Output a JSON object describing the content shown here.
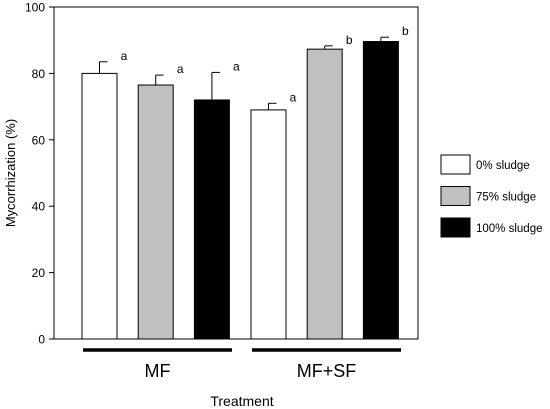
{
  "chart_data": {
    "type": "bar",
    "title": "",
    "xlabel": "Treatment",
    "ylabel": "Mycorrhization (%)",
    "ylim": [
      0,
      100
    ],
    "yticks": [
      0,
      20,
      40,
      60,
      80,
      100
    ],
    "grid": false,
    "legend_position": "right",
    "groups": [
      "MF",
      "MF+SF"
    ],
    "series": [
      {
        "name": "0% sludge",
        "color": "#ffffff",
        "values": [
          80,
          69
        ],
        "errors": [
          3.5,
          2
        ],
        "letters": [
          "a",
          "a"
        ]
      },
      {
        "name": "75% sludge",
        "color": "#c0c0c0",
        "values": [
          76.5,
          87.3
        ],
        "errors": [
          3,
          1
        ],
        "letters": [
          "a",
          "b"
        ]
      },
      {
        "name": "100% sludge",
        "color": "#000000",
        "values": [
          72,
          89.6
        ],
        "errors": [
          8.3,
          1.3
        ],
        "letters": [
          "a",
          "b"
        ]
      }
    ]
  }
}
